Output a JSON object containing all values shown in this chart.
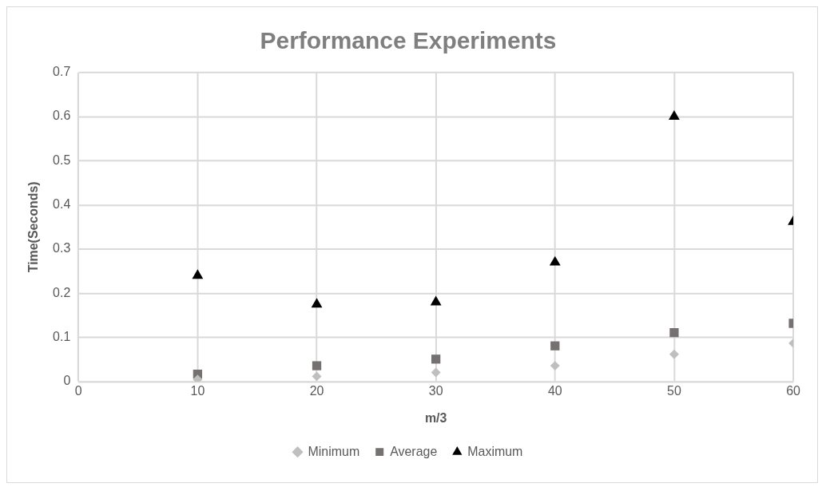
{
  "chart_data": {
    "type": "scatter",
    "title": "Performance Experiments",
    "xlabel": "m/3",
    "ylabel": "Time(Seconds)",
    "x": [
      10,
      20,
      30,
      40,
      50,
      60
    ],
    "series": [
      {
        "name": "Minimum",
        "color": "#bfbfbf",
        "marker": "diamond",
        "values": [
          0.005,
          0.012,
          0.021,
          0.036,
          0.062,
          0.087
        ]
      },
      {
        "name": "Average",
        "color": "#767171",
        "marker": "square",
        "values": [
          0.017,
          0.036,
          0.051,
          0.081,
          0.111,
          0.132
        ]
      },
      {
        "name": "Maximum",
        "color": "#000000",
        "marker": "triangle",
        "values": [
          0.24,
          0.175,
          0.18,
          0.27,
          0.6,
          0.362
        ]
      }
    ],
    "xlim": [
      0,
      60
    ],
    "xticks": [
      0,
      10,
      20,
      30,
      40,
      50,
      60
    ],
    "ylim": [
      0,
      0.7
    ],
    "yticks": [
      0,
      0.1,
      0.2,
      0.3,
      0.4,
      0.5,
      0.6,
      0.7
    ],
    "grid": true,
    "legend": "bottom"
  }
}
